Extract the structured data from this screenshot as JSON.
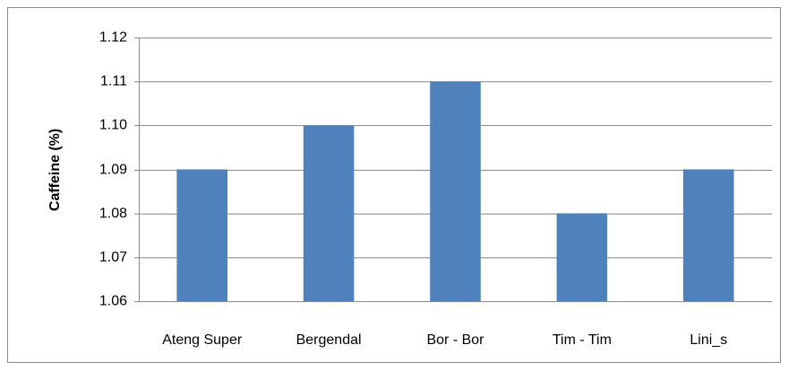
{
  "chart_data": {
    "type": "bar",
    "ylabel": "Caffeine (%)",
    "categories": [
      "Ateng Super",
      "Bergendal",
      "Bor - Bor",
      "Tim - Tim",
      "Lini_s"
    ],
    "values": [
      1.09,
      1.1,
      1.11,
      1.08,
      1.09
    ],
    "color": "#4f81bd",
    "ylim": [
      1.06,
      1.12
    ],
    "yticks": [
      1.06,
      1.07,
      1.08,
      1.09,
      {
        "value": 1.1,
        "label": "1.10"
      },
      1.11,
      1.12
    ],
    "grid": true
  }
}
